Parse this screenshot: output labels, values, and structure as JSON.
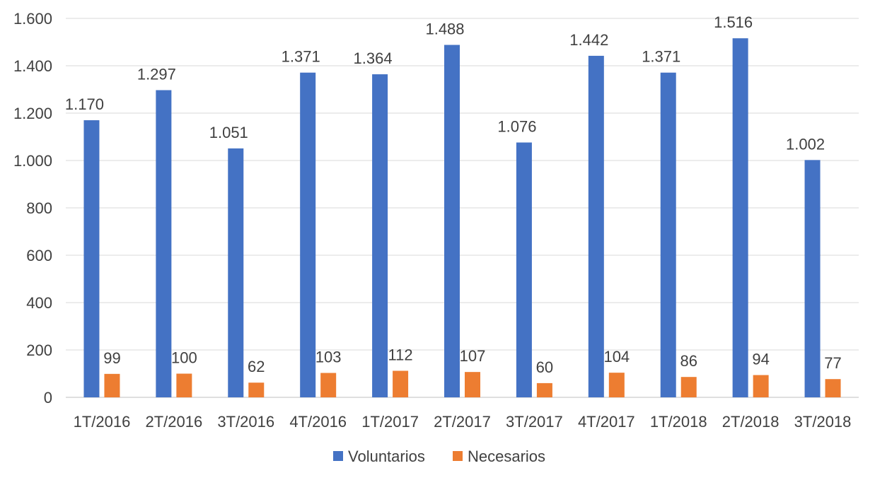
{
  "chart_data": {
    "type": "bar",
    "categories": [
      "1T/2016",
      "2T/2016",
      "3T/2016",
      "4T/2016",
      "1T/2017",
      "2T/2017",
      "3T/2017",
      "4T/2017",
      "1T/2018",
      "2T/2018",
      "3T/2018"
    ],
    "series": [
      {
        "name": "Voluntarios",
        "color": "#4472C4",
        "values": [
          1170,
          1297,
          1051,
          1371,
          1364,
          1488,
          1076,
          1442,
          1371,
          1516,
          1002
        ],
        "labels": [
          "1.170",
          "1.297",
          "1.051",
          "1.371",
          "1.364",
          "1.488",
          "1.076",
          "1.442",
          "1.371",
          "1.516",
          "1.002"
        ]
      },
      {
        "name": "Necesarios",
        "color": "#ED7D31",
        "values": [
          99,
          100,
          62,
          103,
          112,
          107,
          60,
          104,
          86,
          94,
          77
        ],
        "labels": [
          "99",
          "100",
          "62",
          "103",
          "112",
          "107",
          "60",
          "104",
          "86",
          "94",
          "77"
        ]
      }
    ],
    "y_ticks": [
      0,
      200,
      400,
      600,
      800,
      1000,
      1200,
      1400,
      1600
    ],
    "y_tick_labels": [
      "0",
      "200",
      "400",
      "600",
      "800",
      "1.000",
      "1.200",
      "1.400",
      "1.600"
    ],
    "ylim": [
      0,
      1600
    ],
    "title": "",
    "xlabel": "",
    "ylabel": "",
    "grid": true,
    "legend_position": "bottom"
  }
}
